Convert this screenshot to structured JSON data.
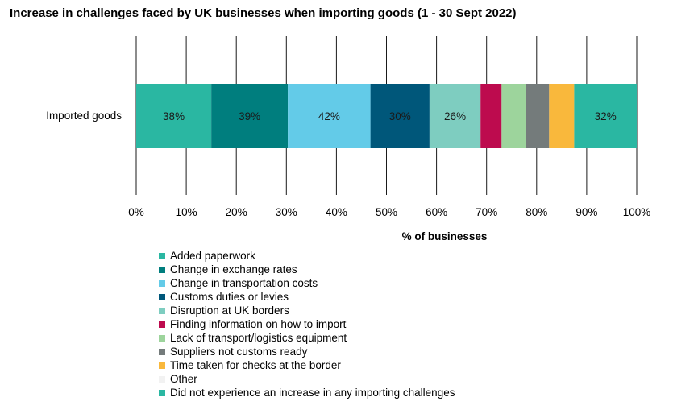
{
  "chart_data": {
    "type": "bar",
    "orientation": "horizontal",
    "stacked": true,
    "title": "Increase in challenges faced by UK businesses when importing goods (1 - 30 Sept 2022)",
    "xlabel": "% of businesses",
    "ylabel": "",
    "xlim": [
      0,
      100
    ],
    "x_ticks": [
      "0%",
      "10%",
      "20%",
      "30%",
      "40%",
      "50%",
      "60%",
      "70%",
      "80%",
      "90%",
      "100%"
    ],
    "categories": [
      "Imported goods"
    ],
    "grid": true,
    "legend_position": "bottom",
    "series": [
      {
        "name": "Added paperwork",
        "share": 15.0,
        "label": "38%",
        "color": "#2ab7a2"
      },
      {
        "name": "Change in exchange rates",
        "share": 15.3,
        "label": "39%",
        "color": "#007e7e"
      },
      {
        "name": "Change in transportation costs",
        "share": 16.5,
        "label": "42%",
        "color": "#63cbe8"
      },
      {
        "name": "Customs duties or levies",
        "share": 11.8,
        "label": "30%",
        "color": "#00577a"
      },
      {
        "name": "Disruption at UK borders",
        "share": 10.2,
        "label": "26%",
        "color": "#7ecdc0"
      },
      {
        "name": "Finding information on how to import",
        "share": 4.2,
        "label": "",
        "color": "#bd0b4e"
      },
      {
        "name": "Lack of transport/logistics equipment",
        "share": 4.8,
        "label": "",
        "color": "#9dd49c"
      },
      {
        "name": "Suppliers not customs ready",
        "share": 4.7,
        "label": "",
        "color": "#747b7b"
      },
      {
        "name": "Time taken for checks at the border",
        "share": 5.0,
        "label": "",
        "color": "#f9b83c"
      },
      {
        "name": "Other",
        "share": 0,
        "label": "",
        "color": "#f2f2f2"
      },
      {
        "name": "Did not experience an increase in any importing challenges",
        "share": 12.5,
        "label": "32%",
        "color": "#2ab7a2"
      }
    ]
  }
}
